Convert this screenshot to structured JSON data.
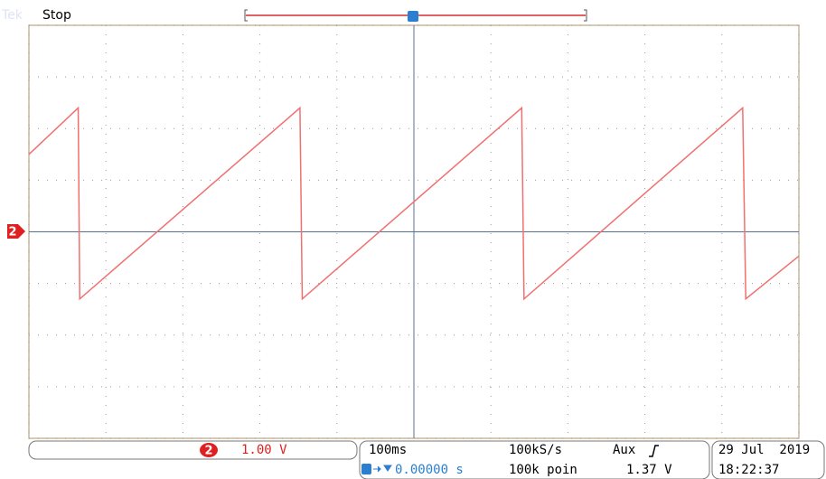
{
  "header": {
    "brand": "Tek",
    "status": "Stop",
    "trigger_marker": "T"
  },
  "display": {
    "type": "line",
    "xlim": [
      0,
      10
    ],
    "ylim": [
      -4,
      4
    ],
    "xticks": [
      0,
      1,
      2,
      3,
      4,
      5,
      6,
      7,
      8,
      9,
      10
    ],
    "yticks": [
      -4,
      -3,
      -2,
      -1,
      0,
      1,
      2,
      3,
      4
    ],
    "ground_marker": "2",
    "waveform": {
      "color": "#f07070",
      "x": [
        0,
        0.64,
        0.66,
        3.52,
        3.55,
        6.4,
        6.43,
        9.27,
        9.31,
        10
      ],
      "values": [
        1.5,
        2.4,
        -1.3,
        2.4,
        -1.3,
        2.4,
        -1.3,
        2.4,
        -1.3,
        -0.47
      ]
    }
  },
  "footer": {
    "channel": "2",
    "scale": "1.00 V",
    "timebase": "100ms",
    "sample_rate": "100kS/s",
    "trigger_source": "Aux",
    "trigger_position": "0.00000 s",
    "record_length": "100k poin",
    "trigger_level": "1.37 V",
    "date": "29 Jul  2019",
    "time": "18:22:37"
  }
}
